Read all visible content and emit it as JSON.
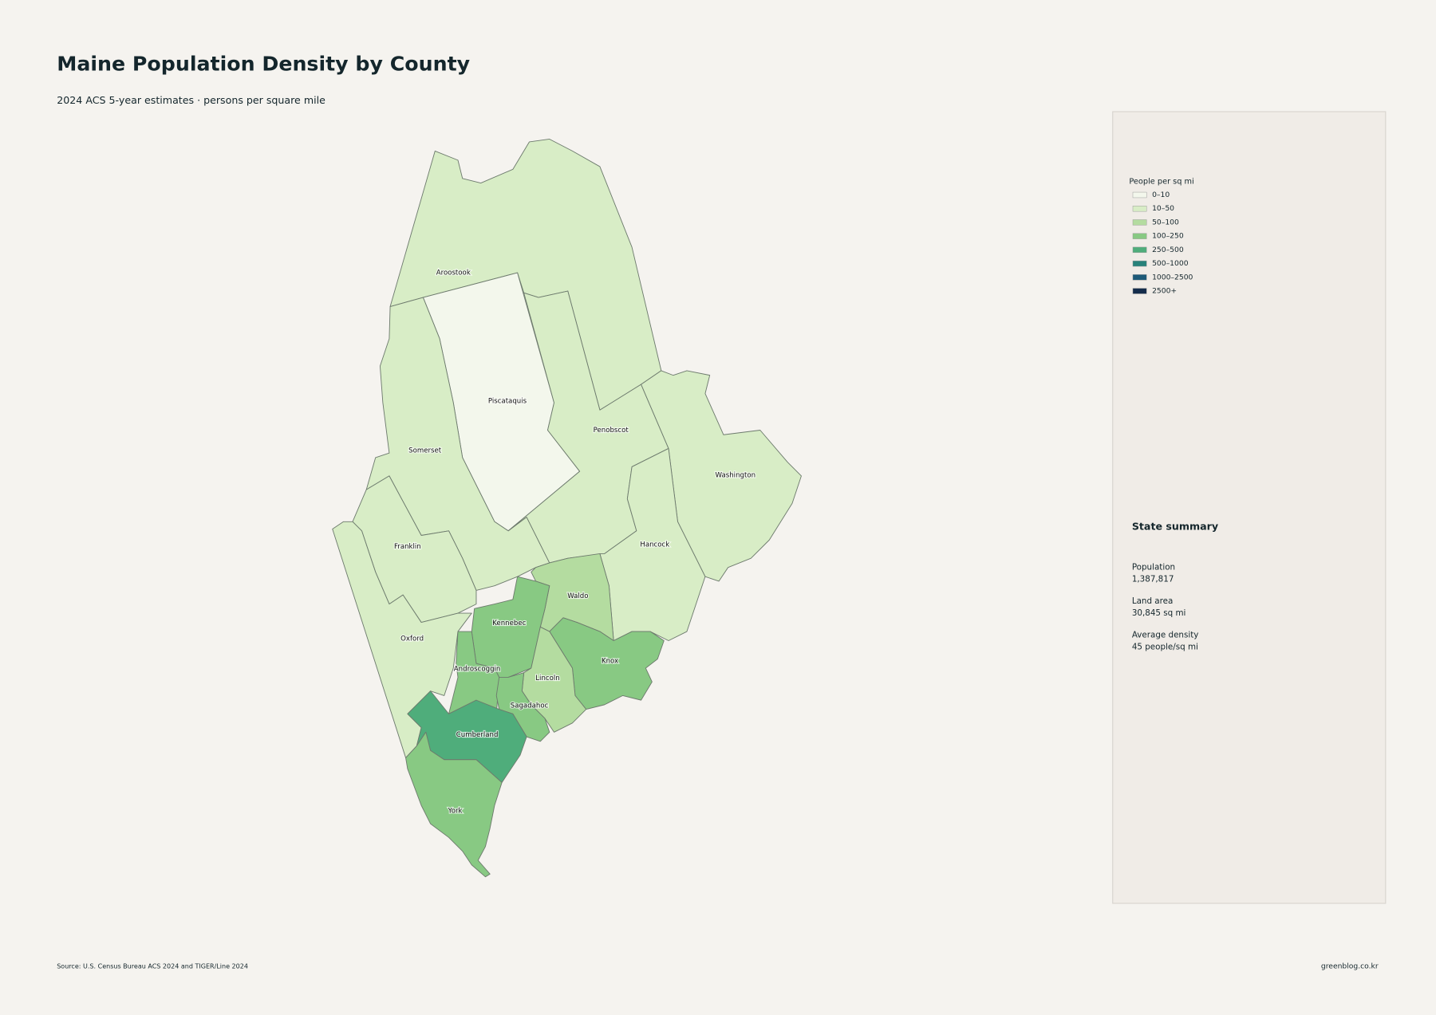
{
  "header": {
    "title": "Maine Population Density by County",
    "subtitle": "2024 ACS 5-year estimates · persons per square mile"
  },
  "counties": [
    {
      "name": "Aroostook",
      "color": "#d8edc6"
    },
    {
      "name": "Piscataquis",
      "color": "#f3f7ec"
    },
    {
      "name": "Somerset",
      "color": "#d8edc6"
    },
    {
      "name": "Franklin",
      "color": "#d8edc6"
    },
    {
      "name": "Oxford",
      "color": "#d8edc6"
    },
    {
      "name": "Penobscot",
      "color": "#d8edc6"
    },
    {
      "name": "Washington",
      "color": "#d8edc6"
    },
    {
      "name": "Hancock",
      "color": "#d8edc6"
    },
    {
      "name": "Waldo",
      "color": "#b4dca0"
    },
    {
      "name": "Kennebec",
      "color": "#88c983"
    },
    {
      "name": "Androscoggin",
      "color": "#88c983"
    },
    {
      "name": "Knox",
      "color": "#88c983"
    },
    {
      "name": "Lincoln",
      "color": "#b4dca0"
    },
    {
      "name": "Sagadahoc",
      "color": "#88c983"
    },
    {
      "name": "Cumberland",
      "color": "#4fad7b"
    },
    {
      "name": "York",
      "color": "#88c983"
    }
  ],
  "legend": {
    "title": "People per sq mi",
    "items": [
      {
        "label": "0–10",
        "color": "#f3f7ec"
      },
      {
        "label": "10–50",
        "color": "#d8edc6"
      },
      {
        "label": "50–100",
        "color": "#b4dca0"
      },
      {
        "label": "100–250",
        "color": "#88c983"
      },
      {
        "label": "250–500",
        "color": "#4fad7b"
      },
      {
        "label": "500–1000",
        "color": "#27827a"
      },
      {
        "label": "1000–2500",
        "color": "#1e5a78"
      },
      {
        "label": "2500+",
        "color": "#142c4b"
      }
    ]
  },
  "summary": {
    "title": "State summary",
    "items": [
      {
        "label": "Population",
        "value": "1,387,817"
      },
      {
        "label": "Land area",
        "value": "30,845 sq mi"
      },
      {
        "label": "Average density",
        "value": "45 people/sq mi"
      }
    ]
  },
  "footer": {
    "source": "Source: U.S. Census Bureau ACS 2024 and TIGER/Line 2024",
    "credit": "greenblog.co.kr"
  }
}
